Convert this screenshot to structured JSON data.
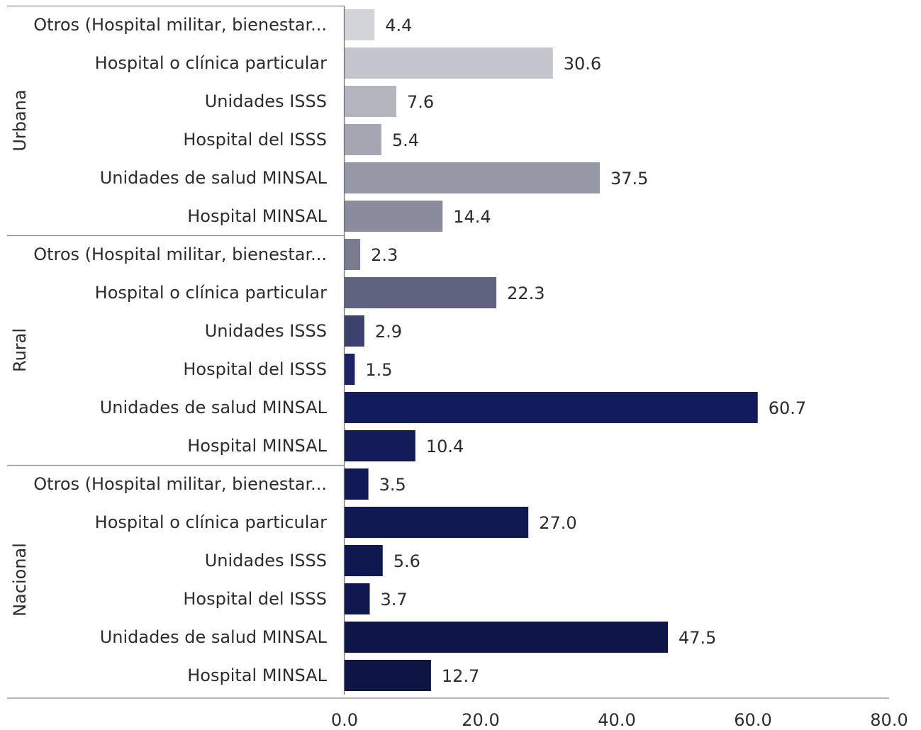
{
  "chart_data": {
    "type": "bar",
    "orientation": "horizontal",
    "title": "",
    "xlabel": "",
    "ylabel": "",
    "xlim": [
      0,
      80
    ],
    "x_ticks": [
      "0.0",
      "20.0",
      "40.0",
      "60.0",
      "80.0"
    ],
    "grid": false,
    "legend": "none",
    "groups": [
      {
        "name": "Urbana",
        "categories": [
          "Otros (Hospital militar, bienestar...",
          "Hospital o clínica particular",
          "Unidades ISSS",
          "Hospital del ISSS",
          "Unidades de salud MINSAL",
          "Hospital MINSAL"
        ],
        "values": [
          4.4,
          30.6,
          7.6,
          5.4,
          37.5,
          14.4
        ],
        "value_labels": [
          "4.4",
          "30.6",
          "7.6",
          "5.4",
          "37.5",
          "14.4"
        ],
        "colors": [
          "#d3d3da",
          "#c3c4cc",
          "#b4b5bf",
          "#a5a6b2",
          "#9798a7",
          "#8a8b9c"
        ]
      },
      {
        "name": "Rural",
        "categories": [
          "Otros (Hospital militar, bienestar...",
          "Hospital o clínica particular",
          "Unidades ISSS",
          "Hospital del ISSS",
          "Unidades de salud MINSAL",
          "Hospital MINSAL"
        ],
        "values": [
          2.3,
          22.3,
          2.9,
          1.5,
          60.7,
          10.4
        ],
        "value_labels": [
          "2.3",
          "22.3",
          "2.9",
          "1.5",
          "60.7",
          "10.4"
        ],
        "colors": [
          "#7a7b8e",
          "#606380",
          "#3d4170",
          "#1d2466",
          "#121c5c",
          "#131c58"
        ]
      },
      {
        "name": "Nacional",
        "categories": [
          "Otros (Hospital militar, bienestar...",
          "Hospital o clínica particular",
          "Unidades ISSS",
          "Hospital del ISSS",
          "Unidades de salud MINSAL",
          "Hospital MINSAL"
        ],
        "values": [
          3.5,
          27.0,
          5.6,
          3.7,
          47.5,
          12.7
        ],
        "value_labels": [
          "3.5",
          "27.0",
          "5.6",
          "3.7",
          "47.5",
          "12.7"
        ],
        "colors": [
          "#121a55",
          "#111953",
          "#101850",
          "#0f174d",
          "#0e1649",
          "#0d1545"
        ]
      }
    ]
  }
}
